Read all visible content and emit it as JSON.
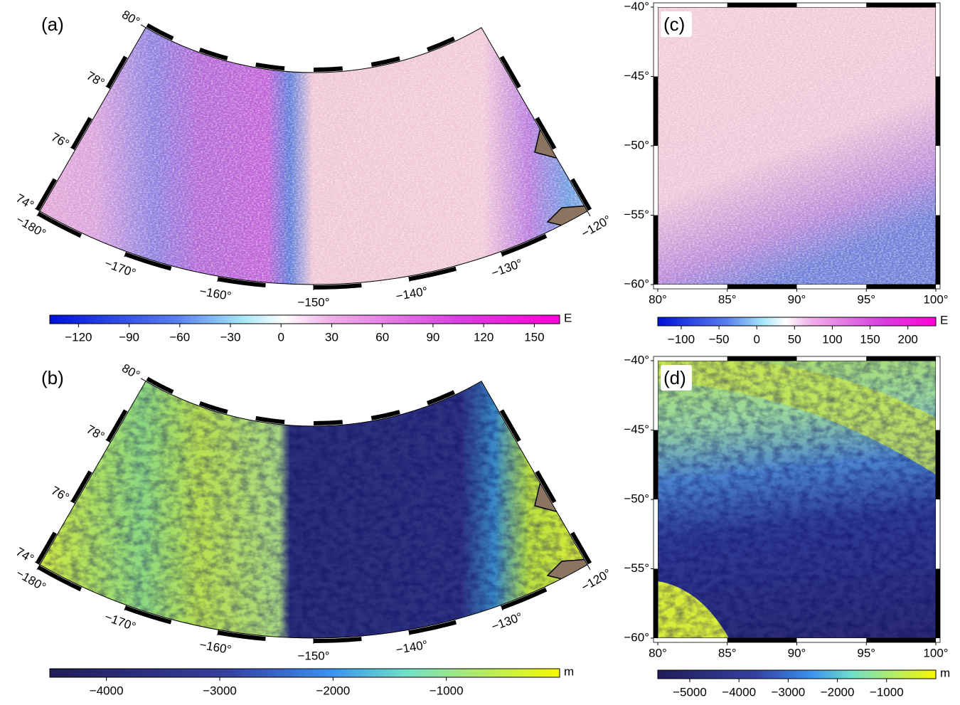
{
  "panels": [
    {
      "label": "(a)",
      "lat": {
        "range": [
          74,
          80
        ],
        "ticks": [
          {
            "value": 74,
            "label": "74°"
          },
          {
            "value": 76,
            "label": "76°"
          },
          {
            "value": 78,
            "label": "78°"
          },
          {
            "value": 80,
            "label": "80°"
          }
        ]
      },
      "lon": {
        "range": [
          -180,
          -120
        ],
        "ticks": [
          {
            "value": -180,
            "label": "−180°"
          },
          {
            "value": -170,
            "label": "−170°"
          },
          {
            "value": -160,
            "label": "−160°"
          },
          {
            "value": -150,
            "label": "−150°"
          },
          {
            "value": -140,
            "label": "−140°"
          },
          {
            "value": -130,
            "label": "−130°"
          },
          {
            "value": -120,
            "label": "−120°"
          }
        ]
      },
      "colorbar": {
        "unit": "E",
        "range": [
          -137,
          165
        ],
        "ticks": [
          {
            "value": -120,
            "label": "−120"
          },
          {
            "value": -90,
            "label": "−90"
          },
          {
            "value": -60,
            "label": "−60"
          },
          {
            "value": -30,
            "label": "−30"
          },
          0,
          30,
          60,
          90,
          120,
          150
        ]
      }
    },
    {
      "label": "(b)",
      "lat": {
        "range": [
          74,
          80
        ],
        "ticks": [
          {
            "value": 74,
            "label": "74°"
          },
          {
            "value": 76,
            "label": "76°"
          },
          {
            "value": 78,
            "label": "78°"
          },
          {
            "value": 80,
            "label": "80°"
          }
        ]
      },
      "lon": {
        "range": [
          -180,
          -120
        ],
        "ticks": [
          {
            "value": -180,
            "label": "−180°"
          },
          {
            "value": -170,
            "label": "−170°"
          },
          {
            "value": -160,
            "label": "−160°"
          },
          {
            "value": -150,
            "label": "−150°"
          },
          {
            "value": -140,
            "label": "−140°"
          },
          {
            "value": -130,
            "label": "−130°"
          },
          {
            "value": -120,
            "label": "−120°"
          }
        ]
      },
      "colorbar": {
        "unit": "m",
        "range": [
          -4500,
          0
        ],
        "ticks": [
          {
            "value": -4000,
            "label": "−4000"
          },
          {
            "value": -3000,
            "label": "−3000"
          },
          {
            "value": -2000,
            "label": "−2000"
          },
          {
            "value": -1000,
            "label": "−1000"
          }
        ]
      }
    },
    {
      "label": "(c)",
      "lat": {
        "range": [
          -60,
          -40
        ],
        "ticks": [
          {
            "value": -40,
            "label": "−40°"
          },
          {
            "value": -45,
            "label": "−45°"
          },
          {
            "value": -50,
            "label": "−50°"
          },
          {
            "value": -55,
            "label": "−55°"
          },
          {
            "value": -60,
            "label": "−60°"
          }
        ]
      },
      "lon": {
        "range": [
          80,
          100
        ],
        "ticks": [
          {
            "value": 80,
            "label": "80°"
          },
          {
            "value": 85,
            "label": "85°"
          },
          {
            "value": 90,
            "label": "90°"
          },
          {
            "value": 95,
            "label": "95°"
          },
          {
            "value": 100,
            "label": "100°"
          }
        ]
      },
      "colorbar": {
        "unit": "E",
        "range": [
          -131,
          237
        ],
        "ticks": [
          {
            "value": -100,
            "label": "−100"
          },
          {
            "value": -50,
            "label": "−50"
          },
          0,
          50,
          100,
          150,
          200
        ]
      }
    },
    {
      "label": "(d)",
      "lat": {
        "range": [
          -60,
          -40
        ],
        "ticks": [
          {
            "value": -40,
            "label": "−40°"
          },
          {
            "value": -45,
            "label": "−45°"
          },
          {
            "value": -50,
            "label": "−50°"
          },
          {
            "value": -55,
            "label": "−55°"
          },
          {
            "value": -60,
            "label": "−60°"
          }
        ]
      },
      "lon": {
        "range": [
          80,
          100
        ],
        "ticks": [
          {
            "value": 80,
            "label": "80°"
          },
          {
            "value": 85,
            "label": "85°"
          },
          {
            "value": 90,
            "label": "90°"
          },
          {
            "value": 95,
            "label": "95°"
          },
          {
            "value": 100,
            "label": "100°"
          }
        ]
      },
      "colorbar": {
        "unit": "m",
        "range": [
          -5650,
          0
        ],
        "ticks": [
          {
            "value": -5000,
            "label": "−5000"
          },
          {
            "value": -4000,
            "label": "−4000"
          },
          {
            "value": -3000,
            "label": "−3000"
          },
          {
            "value": -2000,
            "label": "−2000"
          },
          {
            "value": -1000,
            "label": "−1000"
          }
        ]
      }
    }
  ]
}
